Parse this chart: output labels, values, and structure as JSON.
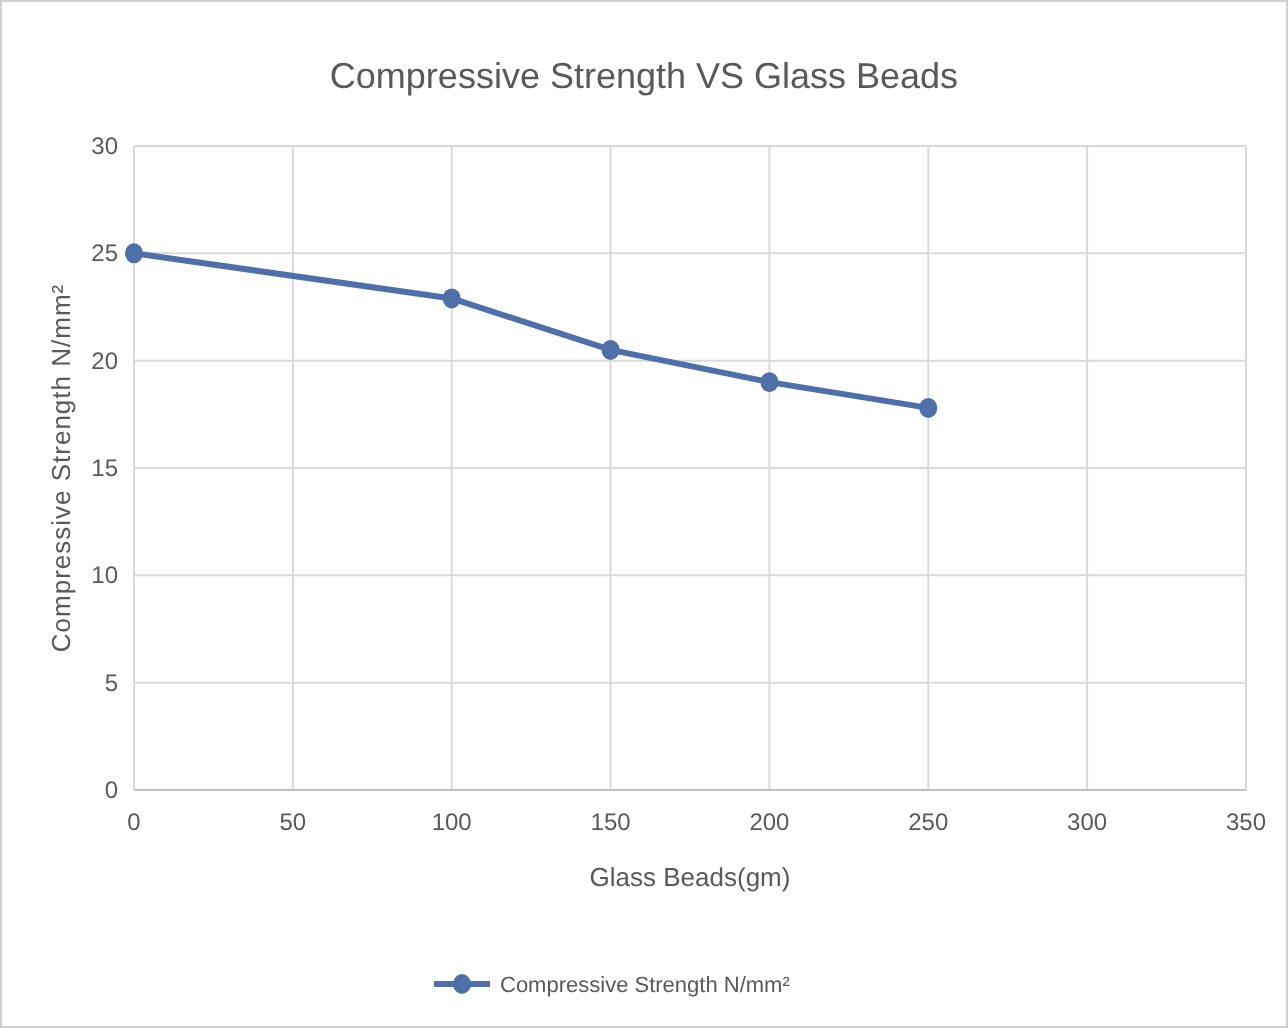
{
  "chart_data": {
    "type": "line",
    "title": "Compressive Strength VS Glass Beads",
    "xlabel": "Glass Beads(gm)",
    "ylabel": "Compressive Strength N/mm²",
    "x": [
      0,
      100,
      150,
      200,
      250
    ],
    "series": [
      {
        "name": "Compressive Strength N/mm²",
        "color": "#4e6faa",
        "values": [
          25,
          22.9,
          20.5,
          19,
          17.8
        ]
      }
    ],
    "xlim": [
      0,
      350
    ],
    "xticks": [
      0,
      50,
      100,
      150,
      200,
      250,
      300,
      350
    ],
    "ylim": [
      0,
      30
    ],
    "yticks": [
      0,
      5,
      10,
      15,
      20,
      25,
      30
    ],
    "grid": true,
    "legend": "bottom",
    "marker": "circle",
    "line_style": "solid"
  }
}
